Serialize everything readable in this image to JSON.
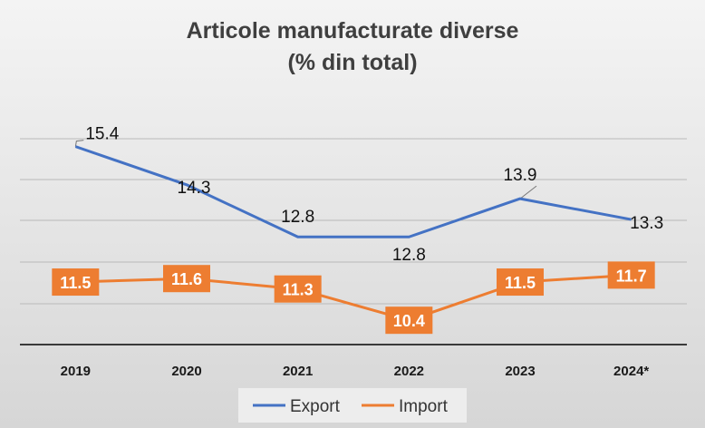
{
  "chart_data": {
    "type": "line",
    "title": "Articole manufacturate diverse",
    "subtitle": "(% din total)",
    "categories": [
      "2019",
      "2020",
      "2021",
      "2022",
      "2023",
      "2024*"
    ],
    "series": [
      {
        "name": "Export",
        "color": "#4472C4",
        "values": [
          15.4,
          14.3,
          12.8,
          12.8,
          13.9,
          13.3
        ]
      },
      {
        "name": "Import",
        "color": "#ED7D31",
        "values": [
          11.5,
          11.6,
          11.3,
          10.4,
          11.5,
          11.7
        ]
      }
    ],
    "data_labels": {
      "Export": [
        "15.4",
        "14.3",
        "12.8",
        "12.8",
        "13.9",
        "13.3"
      ],
      "Import": [
        "11.5",
        "11.6",
        "11.3",
        "10.4",
        "11.5",
        "11.7"
      ]
    },
    "ylim": [
      9.7,
      16.8
    ],
    "grid": true,
    "legend_position": "bottom"
  }
}
